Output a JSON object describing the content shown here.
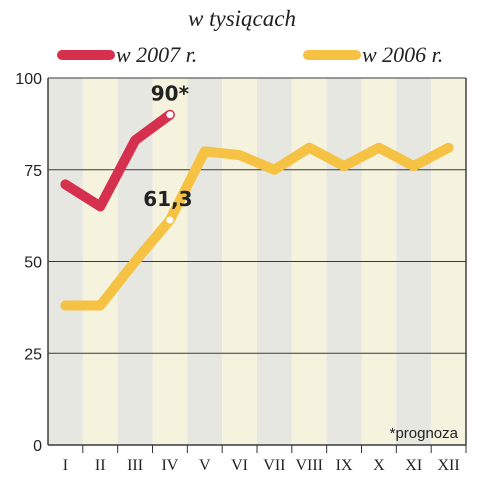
{
  "chart_data": {
    "type": "line",
    "title": "w tysiącach",
    "categories": [
      "I",
      "II",
      "III",
      "IV",
      "V",
      "VI",
      "VII",
      "VIII",
      "IX",
      "X",
      "XI",
      "XII"
    ],
    "ylim": [
      0,
      100
    ],
    "yticks": [
      0,
      25,
      50,
      75,
      100
    ],
    "grid": true,
    "legend_position": "top",
    "series": [
      {
        "name": "w 2007 r.",
        "color": "#d6304f",
        "values": [
          71,
          65,
          83,
          90,
          null,
          null,
          null,
          null,
          null,
          null,
          null,
          null
        ]
      },
      {
        "name": "w 2006 r.",
        "color": "#f5c243",
        "values": [
          38,
          38,
          50,
          61.3,
          80,
          79,
          75,
          81,
          76,
          81,
          76,
          81
        ]
      }
    ],
    "annotations": [
      {
        "label": "90*",
        "series": 0,
        "category": "IV"
      },
      {
        "label": "61,3",
        "series": 1,
        "category": "IV"
      }
    ],
    "footnote": "*prognoza",
    "colors": {
      "band_light": "#f5f2dd",
      "band_dark": "#e7e7e2",
      "grid": "#3a3a3a",
      "axis": "#333333"
    }
  }
}
